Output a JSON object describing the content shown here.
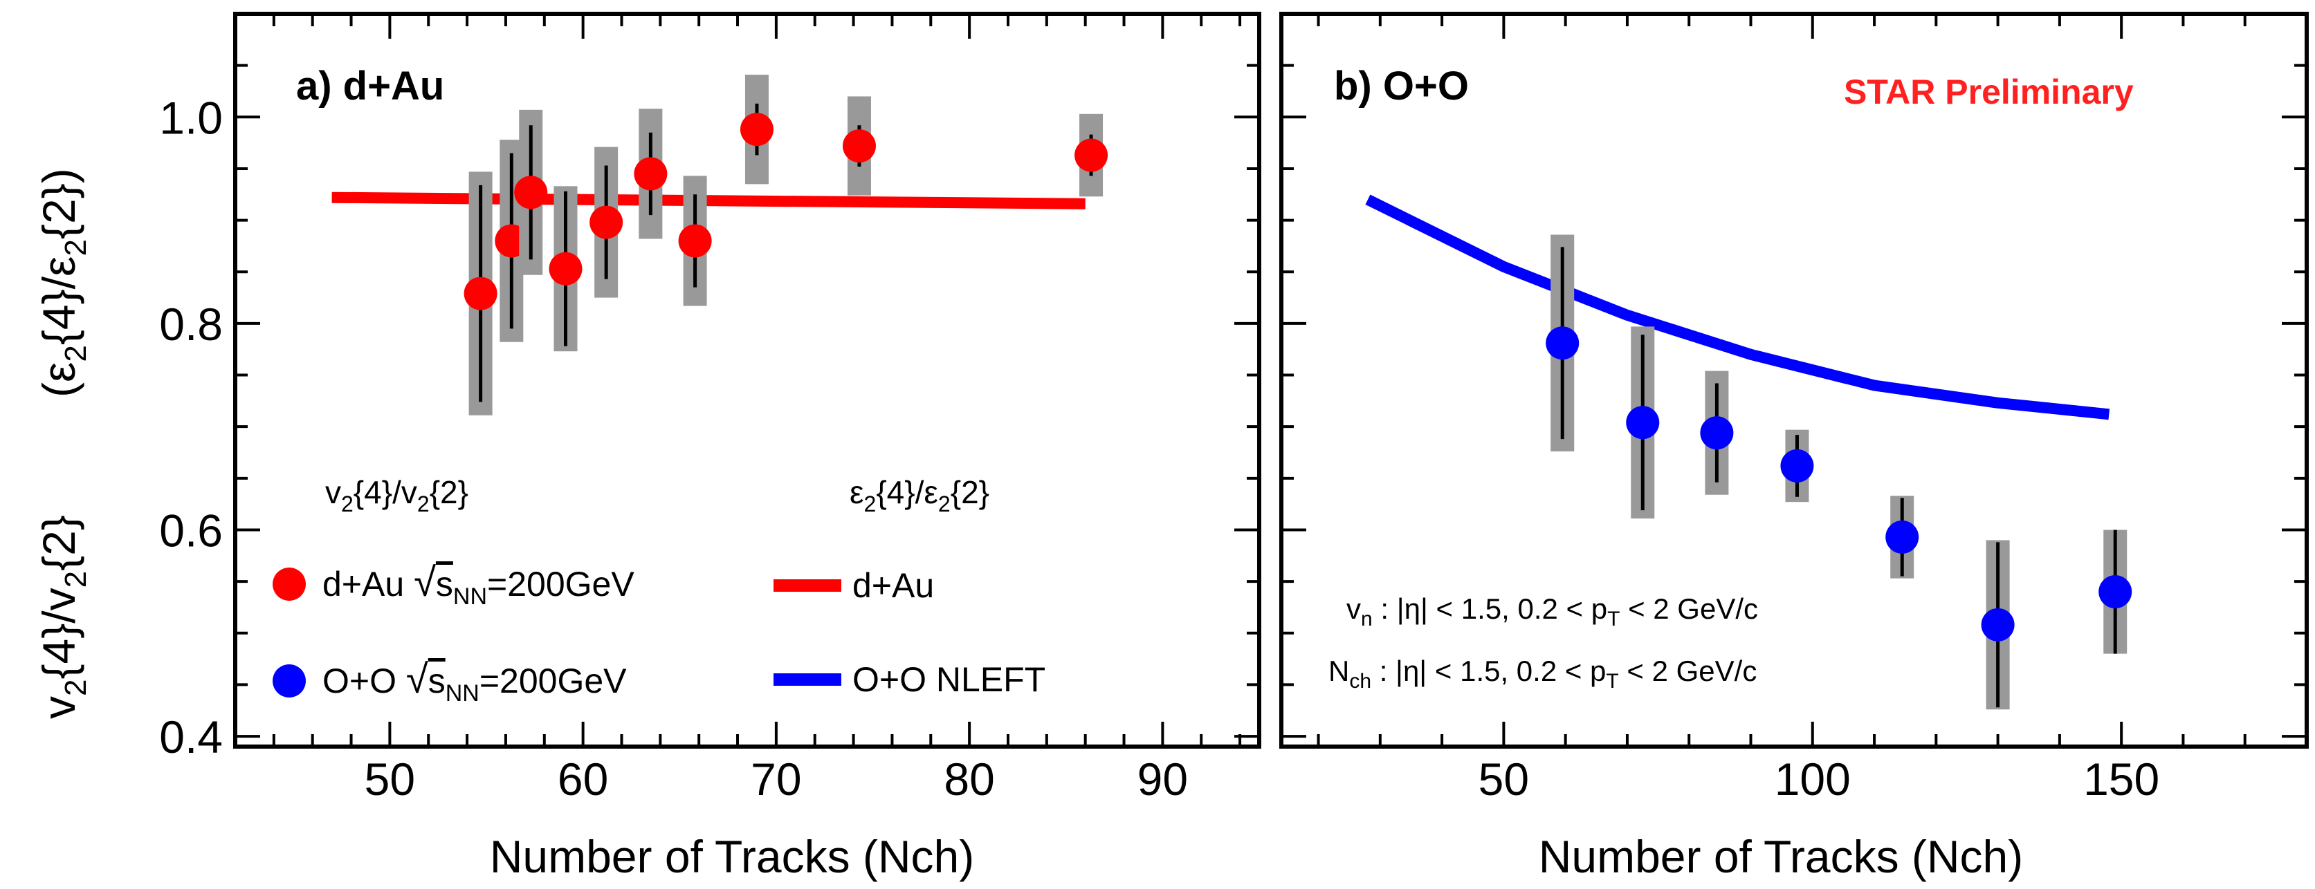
{
  "chart_data": [
    {
      "type": "scatter",
      "panel_label": "a) d+Au",
      "xlabel": "Number of Tracks (Nch)",
      "ylabel_left": "v2{4}/v2{2}",
      "ylabel_right": "(ε2{4}/ε2{2})",
      "xlim": [
        42,
        95
      ],
      "ylim": [
        0.39,
        1.1
      ],
      "xticks": [
        50,
        60,
        70,
        80,
        90
      ],
      "yticks": [
        0.4,
        0.6,
        0.8,
        1.0
      ],
      "xtick_labels": [
        "50",
        "60",
        "70",
        "80",
        "90"
      ],
      "ytick_labels": [
        "0.4",
        "0.6",
        "0.8",
        "1.0"
      ],
      "series": [
        {
          "name": "d+Au √sNN=200GeV",
          "color": "#ff0000",
          "points": [
            {
              "x": 54.7,
              "y": 0.829,
              "stat": 0.105,
              "sys": 0.118
            },
            {
              "x": 56.3,
              "y": 0.88,
              "stat": 0.085,
              "sys": 0.098
            },
            {
              "x": 57.3,
              "y": 0.927,
              "stat": 0.065,
              "sys": 0.08
            },
            {
              "x": 59.1,
              "y": 0.853,
              "stat": 0.075,
              "sys": 0.08
            },
            {
              "x": 61.2,
              "y": 0.898,
              "stat": 0.055,
              "sys": 0.073
            },
            {
              "x": 63.5,
              "y": 0.945,
              "stat": 0.04,
              "sys": 0.063
            },
            {
              "x": 65.8,
              "y": 0.88,
              "stat": 0.045,
              "sys": 0.063
            },
            {
              "x": 69.0,
              "y": 0.988,
              "stat": 0.025,
              "sys": 0.053
            },
            {
              "x": 74.3,
              "y": 0.972,
              "stat": 0.02,
              "sys": 0.048
            },
            {
              "x": 86.3,
              "y": 0.963,
              "stat": 0.02,
              "sys": 0.04
            }
          ]
        }
      ],
      "curves": [
        {
          "name": "d+Au",
          "color": "#ff0000",
          "x": [
            47,
            86
          ],
          "y": [
            0.922,
            0.916
          ]
        }
      ]
    },
    {
      "type": "scatter",
      "panel_label": "b) O+O",
      "annotation": "STAR Preliminary",
      "xlabel": "Number of Tracks (Nch)",
      "xlim": [
        14,
        180
      ],
      "ylim": [
        0.39,
        1.1
      ],
      "xticks": [
        50,
        100,
        150
      ],
      "xtick_labels": [
        "50",
        "100",
        "150"
      ],
      "series": [
        {
          "name": "O+O √sNN=200GeV",
          "color": "#0000ff",
          "points": [
            {
              "x": 59.5,
              "y": 0.781,
              "stat": 0.093,
              "sys": 0.105
            },
            {
              "x": 72.5,
              "y": 0.704,
              "stat": 0.085,
              "sys": 0.093
            },
            {
              "x": 84.5,
              "y": 0.694,
              "stat": 0.048,
              "sys": 0.06
            },
            {
              "x": 97.5,
              "y": 0.662,
              "stat": 0.03,
              "sys": 0.035
            },
            {
              "x": 114.5,
              "y": 0.593,
              "stat": 0.038,
              "sys": 0.04
            },
            {
              "x": 130.0,
              "y": 0.508,
              "stat": 0.08,
              "sys": 0.082
            },
            {
              "x": 149.0,
              "y": 0.54,
              "stat": 0.06,
              "sys": 0.06
            }
          ]
        }
      ],
      "curves": [
        {
          "name": "O+O NLEFT",
          "color": "#0000ff",
          "x": [
            28,
            50,
            70,
            90,
            110,
            130,
            148
          ],
          "y": [
            0.92,
            0.855,
            0.808,
            0.77,
            0.74,
            0.723,
            0.712
          ]
        }
      ]
    }
  ],
  "legend": {
    "header_left": "v2{4}/v2{2}",
    "header_right": "ε2{4}/ε2{2}",
    "items": [
      "d+Au √sNN=200GeV",
      "O+O √sNN=200GeV",
      "d+Au",
      "O+O NLEFT"
    ]
  },
  "cuts": {
    "vn": "vn : |η| < 1.5,  0.2 < pT < 2 GeV/c",
    "nch": "Nch : |η| < 1.5,  0.2 < pT < 2 GeV/c"
  }
}
